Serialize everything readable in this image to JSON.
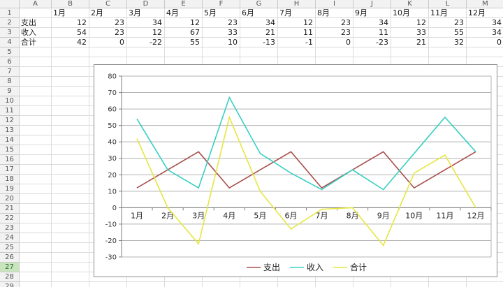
{
  "colors": {
    "grid_line": "#dcdcdc",
    "header_bg": "#f2f2f2",
    "header_border": "#c9c9c9",
    "header_text": "#555555",
    "selected_row_bg": "#c9e5bd",
    "selected_row_text": "#2e6b30",
    "chart_border": "#8a8a8a",
    "chart_grid": "#b3b3b3",
    "axis": "#7d7d7d",
    "label_text": "#333333"
  },
  "spreadsheet": {
    "column_headers": [
      "A",
      "B",
      "C",
      "D",
      "E",
      "F",
      "G",
      "H",
      "I",
      "J",
      "K",
      "L",
      "M"
    ],
    "row_count": 29,
    "selected_row": 27,
    "month_row": [
      "1月",
      "2月",
      "3月",
      "4月",
      "5月",
      "6月",
      "7月",
      "8月",
      "9月",
      "10月",
      "11月",
      "12月"
    ],
    "data_rows": [
      {
        "label": "支出",
        "values": [
          12,
          23,
          34,
          12,
          23,
          34,
          12,
          23,
          34,
          12,
          23,
          34
        ]
      },
      {
        "label": "收入",
        "values": [
          54,
          23,
          12,
          67,
          33,
          21,
          11,
          23,
          11,
          33,
          55,
          34
        ]
      },
      {
        "label": "合计",
        "values": [
          42,
          0,
          -22,
          55,
          10,
          -13,
          -1,
          0,
          -23,
          21,
          32,
          0
        ]
      }
    ]
  },
  "chart_data": {
    "type": "line",
    "title": "",
    "categories": [
      "1月",
      "2月",
      "3月",
      "4月",
      "5月",
      "6月",
      "7月",
      "8月",
      "9月",
      "10月",
      "11月",
      "12月"
    ],
    "series": [
      {
        "name": "支出",
        "color": "#a8504c",
        "values": [
          12,
          23,
          34,
          12,
          23,
          34,
          12,
          23,
          34,
          12,
          23,
          34
        ]
      },
      {
        "name": "收入",
        "color": "#38d0c3",
        "values": [
          54,
          23,
          12,
          67,
          33,
          21,
          11,
          23,
          11,
          33,
          55,
          34
        ]
      },
      {
        "name": "合计",
        "color": "#e6e642",
        "values": [
          42,
          0,
          -22,
          55,
          10,
          -13,
          -1,
          0,
          -23,
          21,
          32,
          0
        ]
      }
    ],
    "ylim": [
      -30,
      80
    ],
    "ytick_step": 10,
    "yticks": [
      80,
      70,
      60,
      50,
      40,
      30,
      20,
      10,
      0,
      -10,
      -20,
      -30
    ],
    "grid": true,
    "legend_position": "bottom"
  }
}
